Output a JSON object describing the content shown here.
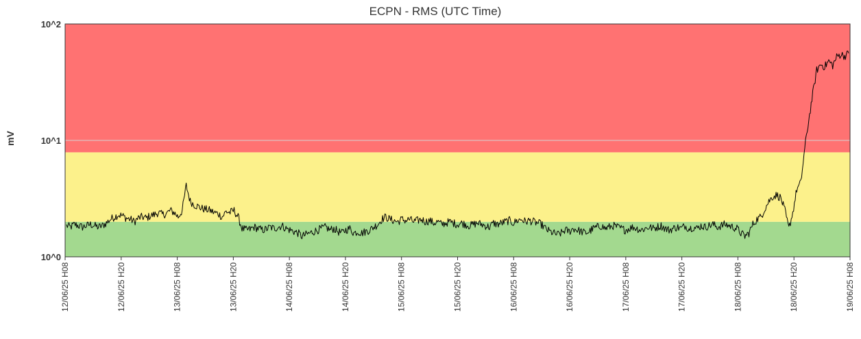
{
  "chart_data": {
    "type": "line",
    "title": "ECPN - RMS (UTC Time)",
    "ylabel": "mV",
    "xlabel": "",
    "yscale": "log",
    "ylim": [
      1,
      100
    ],
    "y_ticks": [
      {
        "value": 1,
        "label": "10^0"
      },
      {
        "value": 10,
        "label": "10^1"
      },
      {
        "value": 100,
        "label": "10^2"
      }
    ],
    "grid": "horizontal",
    "legend": "none",
    "x_ticks": [
      "12/06/25 H08",
      "12/06/25 H20",
      "13/06/25 H08",
      "13/06/25 H20",
      "14/06/25 H08",
      "14/06/25 H20",
      "15/06/25 H08",
      "15/06/25 H20",
      "16/06/25 H08",
      "16/06/25 H20",
      "17/06/25 H08",
      "17/06/25 H20",
      "18/06/25 H08",
      "18/06/25 H20",
      "19/06/25 H08"
    ],
    "bands": [
      {
        "from": 1,
        "to": 2.0,
        "color": "#a3d98f"
      },
      {
        "from": 2.0,
        "to": 7.9,
        "color": "#fcf18b"
      },
      {
        "from": 7.9,
        "to": 100,
        "color": "#ff7272"
      }
    ],
    "series": [
      {
        "color": "#000000",
        "x_start": "12/06/25 H08",
        "x_end": "19/06/25 H08",
        "values": [
          1.85,
          1.8,
          1.9,
          1.85,
          1.8,
          1.85,
          1.9,
          1.85,
          1.8,
          1.85,
          1.95,
          2.1,
          2.2,
          2.3,
          2.25,
          2.15,
          2.1,
          2.0,
          2.15,
          2.2,
          2.15,
          2.25,
          2.3,
          2.4,
          2.3,
          2.35,
          2.5,
          2.4,
          2.2,
          2.5,
          4.1,
          3.0,
          2.8,
          2.7,
          2.6,
          2.55,
          2.5,
          2.4,
          2.35,
          2.2,
          2.45,
          2.4,
          2.5,
          2.2,
          1.75,
          1.7,
          1.72,
          1.8,
          1.75,
          1.7,
          1.72,
          1.8,
          1.75,
          1.8,
          1.85,
          1.75,
          1.7,
          1.65,
          1.6,
          1.5,
          1.55,
          1.6,
          1.65,
          1.7,
          1.75,
          1.8,
          1.7,
          1.75,
          1.65,
          1.6,
          1.7,
          1.75,
          1.6,
          1.65,
          1.6,
          1.65,
          1.7,
          1.8,
          1.9,
          2.1,
          2.2,
          2.1,
          2.05,
          2.0,
          2.1,
          2.05,
          2.1,
          2.0,
          2.05,
          2.1,
          2.0,
          2.05,
          1.95,
          2.0,
          1.9,
          1.95,
          2.0,
          1.95,
          1.9,
          1.95,
          1.9,
          1.85,
          1.9,
          1.95,
          1.9,
          1.85,
          1.8,
          1.95,
          1.9,
          1.95,
          2.0,
          2.05,
          1.95,
          2.05,
          2.1,
          2.0,
          2.05,
          2.0,
          1.95,
          1.9,
          1.75,
          1.65,
          1.6,
          1.55,
          1.6,
          1.7,
          1.65,
          1.75,
          1.7,
          1.65,
          1.6,
          1.65,
          1.75,
          1.8,
          1.85,
          1.75,
          1.8,
          1.85,
          1.8,
          1.75,
          1.7,
          1.75,
          1.8,
          1.75,
          1.7,
          1.75,
          1.8,
          1.75,
          1.8,
          1.85,
          1.75,
          1.7,
          1.75,
          1.8,
          1.75,
          1.85,
          1.75,
          1.8,
          1.75,
          1.85,
          1.8,
          1.85,
          1.9,
          1.8,
          1.85,
          1.9,
          1.85,
          1.8,
          1.75,
          1.6,
          1.5,
          1.6,
          1.9,
          2.1,
          2.2,
          2.6,
          3.0,
          3.3,
          3.4,
          3.2,
          2.5,
          1.75,
          2.4,
          3.8,
          4.3,
          8.5,
          15,
          25,
          40,
          45,
          43,
          48,
          44,
          52,
          55,
          53,
          56
        ]
      }
    ]
  }
}
